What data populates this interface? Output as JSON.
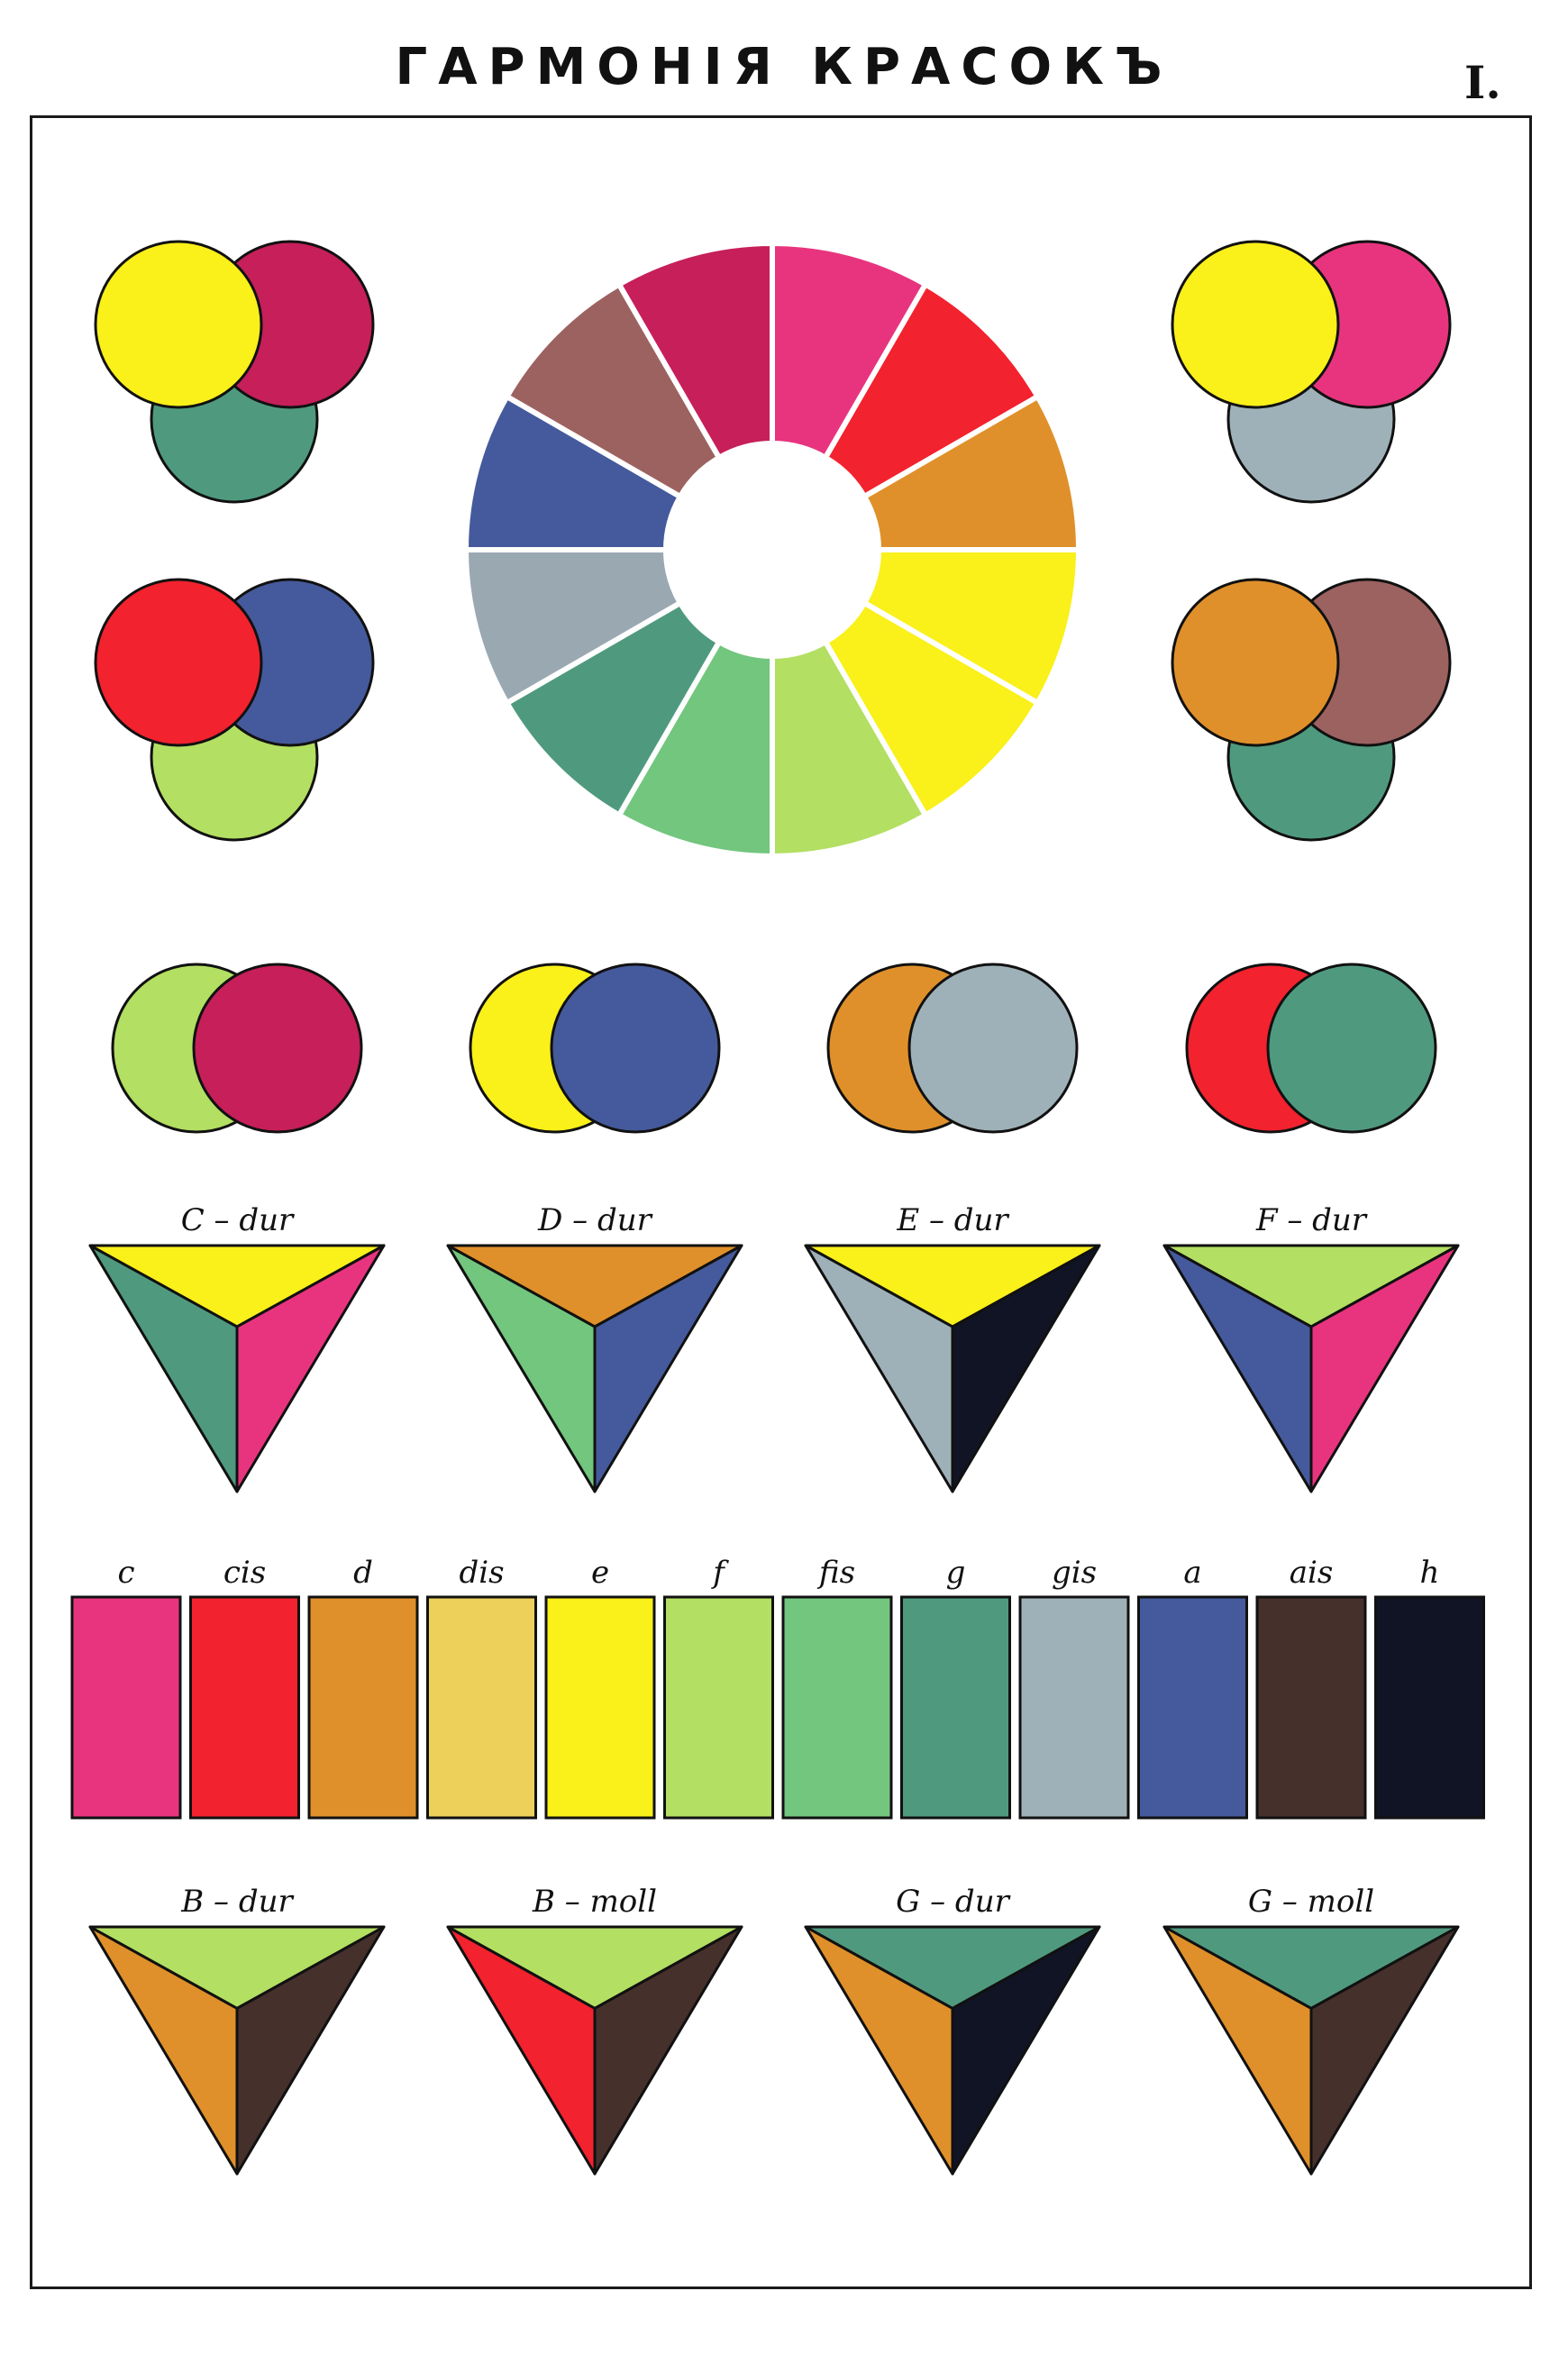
{
  "title": "ГАРМОНІЯ КРАСОКЪ",
  "plate_number": "I.",
  "colors": {
    "c": "#e8347e",
    "cis": "#f2222e",
    "d": "#e0902a",
    "dis": "#ecd05a",
    "e": "#faf01a",
    "f": "#b3df62",
    "fis": "#72c67e",
    "g": "#4f9a7f",
    "gis": "#9fb1b8",
    "a": "#455a9c",
    "ais": "#45302c",
    "h": "#111424",
    "wheel_magenta": "#c61f5a",
    "wheel_rose": "#9c6260",
    "wheel_mid_green": "#5e9f7a",
    "wheel_gray": "#9aa8b2",
    "outline": "#111111"
  },
  "keys": {
    "top": [
      "C – dur",
      "D – dur",
      "E – dur",
      "F – dur"
    ],
    "bottom": [
      "B – dur",
      "B – moll",
      "G – dur",
      "G – moll"
    ]
  },
  "notes": [
    "c",
    "cis",
    "d",
    "dis",
    "e",
    "f",
    "fis",
    "g",
    "gis",
    "a",
    "ais",
    "h"
  ],
  "color_wheel": [
    "c",
    "cis",
    "d",
    "e",
    "e",
    "f",
    "fis",
    "g",
    "wheel_gray",
    "a",
    "wheel_rose",
    "wheel_magenta"
  ],
  "triad_circles": [
    [
      "e",
      "wheel_magenta",
      "g"
    ],
    [
      "cis",
      "a",
      "f"
    ],
    [
      "e",
      "c",
      "gis"
    ],
    [
      "d",
      "wheel_rose",
      "g"
    ]
  ],
  "pair_circles": [
    [
      "f",
      "wheel_magenta"
    ],
    [
      "e",
      "a"
    ],
    [
      "d",
      "gis"
    ],
    [
      "cis",
      "g"
    ]
  ],
  "triangles": {
    "top": [
      [
        "e",
        "g",
        "c"
      ],
      [
        "d",
        "fis",
        "a"
      ],
      [
        "e",
        "gis",
        "h"
      ],
      [
        "f",
        "a",
        "c"
      ]
    ],
    "bottom": [
      [
        "f",
        "d",
        "ais"
      ],
      [
        "f",
        "cis",
        "ais"
      ],
      [
        "g",
        "d",
        "h"
      ],
      [
        "g",
        "d",
        "ais"
      ]
    ]
  }
}
